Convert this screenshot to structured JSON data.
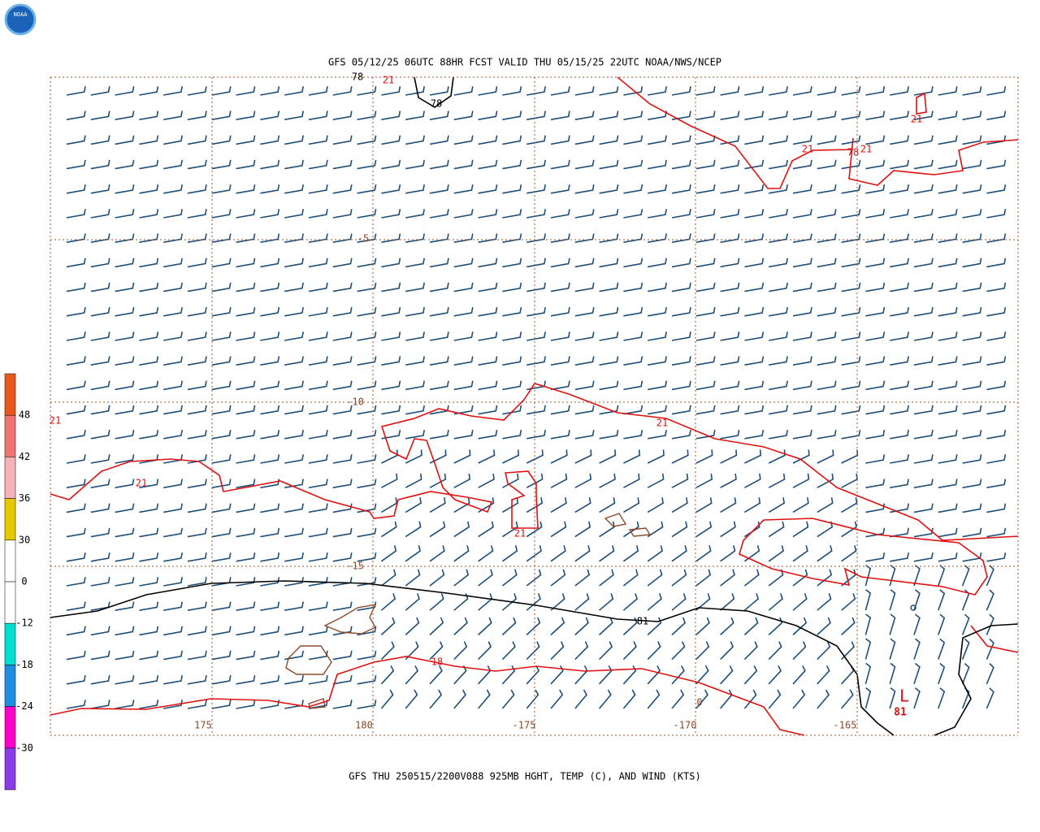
{
  "logo": "NOAA",
  "header": {
    "title": "GFS 05/12/25 06UTC 88HR FCST VALID THU 05/15/25 22UTC NOAA/NWS/NCEP"
  },
  "footer": {
    "caption": "GFS THU 250515/2200V088 925MB HGHT, TEMP (C), AND WIND (KTS)"
  },
  "colorbar": {
    "labels": [
      48,
      42,
      36,
      30,
      0,
      -12,
      -18,
      -24,
      -30
    ],
    "colors": [
      "#e8581c",
      "#f07474",
      "#f5b3b8",
      "#e8c800",
      "#ffffff",
      "#ffffff",
      "#00e0d0",
      "#1e8fe0",
      "#ff00c8",
      "#8a3ce6"
    ]
  },
  "map": {
    "lat_labels": [
      -5,
      -10,
      -15
    ],
    "lon_labels": [
      175,
      180,
      -175,
      -170,
      -165
    ],
    "temp_labels": [
      "21",
      "21",
      "21",
      "21",
      "21",
      "21",
      "21",
      "21",
      "18",
      "0"
    ],
    "height_labels": [
      "78",
      "78",
      "78",
      "81"
    ],
    "low": {
      "symbol": "L",
      "value": "81"
    },
    "barb_color": "#1f4e79",
    "temp_color": "#e01010",
    "height_color": "#000000",
    "land_color": "#8b4a2b"
  }
}
